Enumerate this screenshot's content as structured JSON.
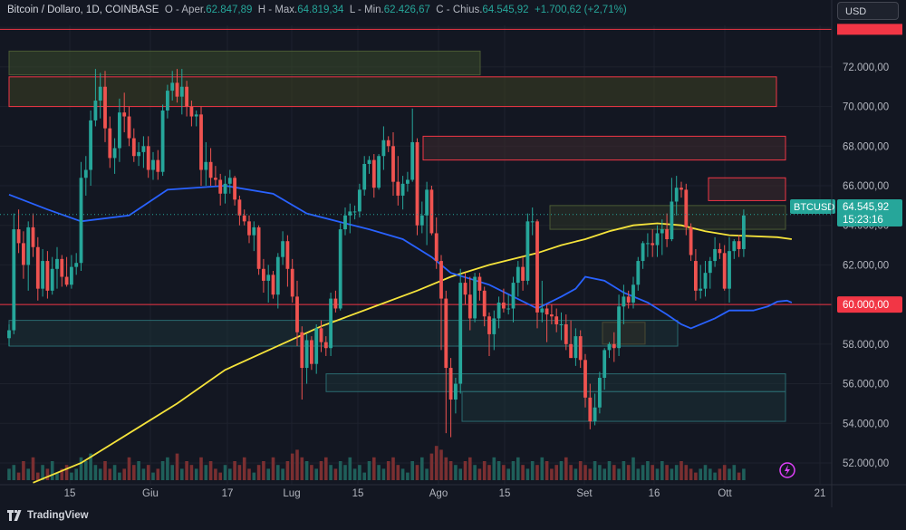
{
  "header": {
    "symbol": "Bitcoin / Dollaro, 1D, COINBASE",
    "open_label": "O - Aper.",
    "open": "62.847,89",
    "high_label": "H - Max.",
    "high": "64.819,34",
    "low_label": "L - Min.",
    "low": "62.426,67",
    "close_label": "C - Chius.",
    "close": "64.545,92",
    "change": "+1.700,62 (+2,71%)"
  },
  "currency_button": "USD",
  "brand": "TradingView",
  "price_tag": {
    "symbol": "BTCUSD",
    "price": "64.545,92",
    "countdown": "15:23:16"
  },
  "level_tag": {
    "price": "60.000,00"
  },
  "colors": {
    "bg": "#131722",
    "up": "#26a69a",
    "down": "#ef5350",
    "sma_slow": "#f5e33b",
    "sma_fast": "#2962ff",
    "level": "#f23645"
  },
  "chart_data": {
    "type": "candlestick",
    "x_labels": [
      "15",
      "Giu",
      "17",
      "Lug",
      "15",
      "Ago",
      "15",
      "Set",
      "16",
      "Ott",
      "21"
    ],
    "y_ticks": [
      "52.000,00",
      "54.000,00",
      "56.000,00",
      "58.000,00",
      "60.000,00",
      "62.000,00",
      "64.000,00",
      "66.000,00",
      "68.000,00",
      "70.000,00",
      "72.000,00"
    ],
    "y_range": [
      50900,
      74100
    ],
    "candles_ohlc": [
      [
        58300,
        59000,
        57900,
        58700
      ],
      [
        58700,
        64600,
        58500,
        63800
      ],
      [
        63800,
        64800,
        62600,
        63100
      ],
      [
        63100,
        63700,
        61300,
        62000
      ],
      [
        62000,
        64200,
        60700,
        63900
      ],
      [
        63900,
        64600,
        62400,
        62900
      ],
      [
        62900,
        63400,
        60200,
        60800
      ],
      [
        60800,
        62800,
        60400,
        62200
      ],
      [
        62200,
        62700,
        60300,
        60700
      ],
      [
        60700,
        62400,
        60500,
        61800
      ],
      [
        61800,
        62900,
        60800,
        62300
      ],
      [
        62300,
        62500,
        60900,
        61400
      ],
      [
        61400,
        62400,
        60900,
        61000
      ],
      [
        61000,
        62500,
        60800,
        61900
      ],
      [
        61900,
        62600,
        61500,
        62100
      ],
      [
        62100,
        67200,
        61700,
        66400
      ],
      [
        66400,
        67500,
        65500,
        66800
      ],
      [
        66800,
        69800,
        66000,
        69300
      ],
      [
        69300,
        71900,
        69000,
        70300
      ],
      [
        70300,
        71700,
        69400,
        71000
      ],
      [
        71000,
        71800,
        68200,
        68900
      ],
      [
        68900,
        69500,
        66900,
        67400
      ],
      [
        67400,
        68400,
        66600,
        67900
      ],
      [
        67900,
        70400,
        67200,
        69700
      ],
      [
        69700,
        70700,
        68700,
        69500
      ],
      [
        69500,
        70000,
        68000,
        68400
      ],
      [
        68400,
        68900,
        67200,
        67500
      ],
      [
        67500,
        68200,
        67000,
        67700
      ],
      [
        67700,
        68500,
        66900,
        68000
      ],
      [
        68000,
        68500,
        66400,
        66800
      ],
      [
        66800,
        67700,
        66300,
        67300
      ],
      [
        67300,
        67800,
        66300,
        66700
      ],
      [
        66700,
        70100,
        66500,
        69800
      ],
      [
        69800,
        71100,
        69400,
        70800
      ],
      [
        70800,
        71800,
        70300,
        71200
      ],
      [
        71200,
        71900,
        70200,
        70500
      ],
      [
        70500,
        71900,
        69600,
        71000
      ],
      [
        71000,
        71300,
        69500,
        70000
      ],
      [
        70000,
        70300,
        69000,
        69500
      ],
      [
        69500,
        69800,
        69000,
        69600
      ],
      [
        69600,
        70000,
        66000,
        66800
      ],
      [
        66800,
        68200,
        66000,
        67200
      ],
      [
        67200,
        67900,
        66000,
        66400
      ],
      [
        66400,
        67000,
        66000,
        66300
      ],
      [
        66300,
        66600,
        65000,
        65600
      ],
      [
        65600,
        66500,
        65100,
        66100
      ],
      [
        66100,
        66800,
        65600,
        66400
      ],
      [
        66400,
        66500,
        65000,
        65300
      ],
      [
        65300,
        65500,
        64000,
        64500
      ],
      [
        64500,
        64800,
        64000,
        64200
      ],
      [
        64200,
        64500,
        63100,
        63500
      ],
      [
        63500,
        64200,
        62700,
        63900
      ],
      [
        63900,
        64000,
        61500,
        61800
      ],
      [
        61800,
        62300,
        60600,
        61200
      ],
      [
        61200,
        62000,
        60100,
        61500
      ],
      [
        61500,
        61700,
        60300,
        60500
      ],
      [
        60500,
        62600,
        59800,
        62400
      ],
      [
        62400,
        63700,
        62000,
        63200
      ],
      [
        63200,
        63500,
        60900,
        61800
      ],
      [
        61800,
        62300,
        60100,
        60400
      ],
      [
        60400,
        61200,
        57900,
        58600
      ],
      [
        58600,
        58900,
        55200,
        56800
      ],
      [
        56800,
        58500,
        56000,
        58200
      ],
      [
        58200,
        58400,
        56700,
        57000
      ],
      [
        57000,
        59000,
        56500,
        58800
      ],
      [
        58800,
        59200,
        57600,
        58100
      ],
      [
        58100,
        58400,
        57400,
        57800
      ],
      [
        57800,
        60600,
        57400,
        60300
      ],
      [
        60300,
        60700,
        59600,
        59800
      ],
      [
        59800,
        64100,
        59700,
        63800
      ],
      [
        63800,
        64900,
        63500,
        64500
      ],
      [
        64500,
        65100,
        63600,
        64700
      ],
      [
        64700,
        65000,
        64300,
        64700
      ],
      [
        64700,
        66100,
        64400,
        65800
      ],
      [
        65800,
        67500,
        65500,
        67100
      ],
      [
        67100,
        67500,
        66600,
        67300
      ],
      [
        67300,
        67600,
        65400,
        65900
      ],
      [
        65900,
        67600,
        65800,
        67500
      ],
      [
        67500,
        69000,
        66800,
        68300
      ],
      [
        68300,
        68500,
        67700,
        68000
      ],
      [
        68000,
        68700,
        65500,
        66200
      ],
      [
        66200,
        67500,
        65000,
        65500
      ],
      [
        65500,
        66500,
        64800,
        66100
      ],
      [
        66100,
        66700,
        65700,
        66300
      ],
      [
        66300,
        69900,
        66200,
        68200
      ],
      [
        68200,
        68400,
        63500,
        64000
      ],
      [
        64000,
        65200,
        63600,
        64500
      ],
      [
        64500,
        66200,
        63000,
        65800
      ],
      [
        65800,
        66000,
        63500,
        63600
      ],
      [
        63600,
        64400,
        61800,
        62200
      ],
      [
        62200,
        62500,
        57700,
        60300
      ],
      [
        60300,
        60700,
        53500,
        56800
      ],
      [
        56800,
        57300,
        53300,
        55200
      ],
      [
        55200,
        56300,
        54500,
        56000
      ],
      [
        56000,
        61800,
        55500,
        61100
      ],
      [
        61100,
        61600,
        60000,
        60500
      ],
      [
        60500,
        61400,
        58700,
        59300
      ],
      [
        59300,
        61600,
        59100,
        61400
      ],
      [
        61400,
        61600,
        60200,
        60700
      ],
      [
        60700,
        60900,
        58900,
        59400
      ],
      [
        59400,
        59600,
        57400,
        58500
      ],
      [
        58500,
        59700,
        57700,
        59300
      ],
      [
        59300,
        60400,
        58800,
        60100
      ],
      [
        60100,
        60800,
        59600,
        59800
      ],
      [
        59800,
        60500,
        59500,
        59800
      ],
      [
        59800,
        61400,
        59100,
        61100
      ],
      [
        61100,
        62200,
        60400,
        61900
      ],
      [
        61900,
        62400,
        60700,
        61200
      ],
      [
        61200,
        64600,
        61000,
        64200
      ],
      [
        64200,
        64900,
        63500,
        64200
      ],
      [
        64200,
        64300,
        58800,
        59600
      ],
      [
        59600,
        61200,
        59100,
        59800
      ],
      [
        59800,
        60000,
        58100,
        59500
      ],
      [
        59500,
        60000,
        59000,
        59400
      ],
      [
        59400,
        59800,
        58600,
        59000
      ],
      [
        59000,
        59600,
        58200,
        59000
      ],
      [
        59000,
        59500,
        57700,
        58000
      ],
      [
        58000,
        59200,
        57300,
        57300
      ],
      [
        57300,
        58800,
        56900,
        58400
      ],
      [
        58400,
        58700,
        56800,
        57200
      ],
      [
        57200,
        57500,
        54800,
        55300
      ],
      [
        55300,
        56000,
        53700,
        54100
      ],
      [
        54100,
        55500,
        53900,
        54800
      ],
      [
        54800,
        56600,
        54500,
        56300
      ],
      [
        56300,
        57800,
        55700,
        57700
      ],
      [
        57700,
        58100,
        57300,
        58000
      ],
      [
        58000,
        58600,
        57100,
        57800
      ],
      [
        57800,
        60500,
        57400,
        59900
      ],
      [
        59900,
        61000,
        59000,
        60400
      ],
      [
        60400,
        60700,
        59800,
        60100
      ],
      [
        60100,
        61400,
        59800,
        61000
      ],
      [
        61000,
        62400,
        60700,
        62200
      ],
      [
        62200,
        63200,
        61800,
        63100
      ],
      [
        63100,
        63600,
        62400,
        63100
      ],
      [
        63100,
        63800,
        62400,
        63000
      ],
      [
        63000,
        64000,
        62400,
        63600
      ],
      [
        63600,
        64300,
        62500,
        63800
      ],
      [
        63800,
        64600,
        62900,
        63300
      ],
      [
        63300,
        66400,
        63200,
        65200
      ],
      [
        65200,
        66500,
        64500,
        65900
      ],
      [
        65900,
        66200,
        65400,
        65800
      ],
      [
        65800,
        66100,
        63500,
        63900
      ],
      [
        63900,
        64100,
        62200,
        62500
      ],
      [
        62200,
        62800,
        60200,
        60700
      ],
      [
        60700,
        62000,
        60300,
        60800
      ],
      [
        60800,
        62200,
        60400,
        61600
      ],
      [
        61600,
        62400,
        60800,
        62200
      ],
      [
        62200,
        63400,
        61900,
        62800
      ],
      [
        62800,
        63100,
        62300,
        62600
      ],
      [
        62600,
        63000,
        60700,
        60800
      ],
      [
        60800,
        63400,
        60100,
        62700
      ],
      [
        62700,
        63300,
        62300,
        63200
      ],
      [
        63200,
        63500,
        62400,
        62800
      ],
      [
        62800,
        64800,
        62400,
        64500
      ]
    ],
    "sma_fast_points": [
      [
        0,
        65550
      ],
      [
        8,
        64800
      ],
      [
        15,
        64200
      ],
      [
        25,
        64500
      ],
      [
        33,
        65800
      ],
      [
        45,
        66000
      ],
      [
        55,
        65600
      ],
      [
        62,
        64600
      ],
      [
        70,
        64100
      ],
      [
        75,
        63800
      ],
      [
        82,
        63300
      ],
      [
        88,
        62400
      ],
      [
        92,
        61600
      ],
      [
        96,
        61300
      ],
      [
        100,
        61000
      ],
      [
        105,
        60400
      ],
      [
        110,
        59800
      ],
      [
        115,
        60400
      ],
      [
        118,
        60800
      ],
      [
        120,
        61400
      ],
      [
        124,
        61200
      ],
      [
        128,
        60600
      ],
      [
        133,
        60100
      ],
      [
        137,
        59500
      ],
      [
        140,
        59000
      ],
      [
        142,
        58800
      ],
      [
        147,
        59300
      ],
      [
        150,
        59700
      ],
      [
        155,
        59700
      ],
      [
        158,
        59900
      ],
      [
        160,
        60150
      ],
      [
        162,
        60200
      ],
      [
        163,
        60100
      ]
    ],
    "sma_slow_points": [
      [
        5,
        51000
      ],
      [
        15,
        52000
      ],
      [
        25,
        53500
      ],
      [
        35,
        55000
      ],
      [
        45,
        56700
      ],
      [
        55,
        57800
      ],
      [
        65,
        58900
      ],
      [
        75,
        59800
      ],
      [
        85,
        60700
      ],
      [
        92,
        61400
      ],
      [
        100,
        62000
      ],
      [
        110,
        62600
      ],
      [
        115,
        63000
      ],
      [
        120,
        63300
      ],
      [
        125,
        63700
      ],
      [
        130,
        64000
      ],
      [
        135,
        64100
      ],
      [
        140,
        64000
      ],
      [
        145,
        63700
      ],
      [
        150,
        63500
      ],
      [
        160,
        63400
      ],
      [
        163,
        63300
      ]
    ],
    "volume_pattern": [
      3,
      4,
      2,
      5,
      3,
      6,
      2,
      4,
      3,
      5,
      2,
      3,
      4,
      2,
      3,
      6,
      5,
      7,
      4,
      3,
      5,
      3,
      4,
      2,
      3,
      6,
      4,
      5,
      3,
      4,
      2,
      3,
      5,
      6,
      4,
      7,
      3,
      5,
      4,
      3,
      6,
      4,
      5,
      3,
      2,
      4,
      3,
      5,
      4,
      6,
      3,
      2,
      4,
      5,
      3,
      6,
      4,
      3,
      5,
      7,
      8,
      6,
      5,
      4,
      3,
      5,
      6,
      4,
      3,
      5,
      4,
      6,
      3,
      4,
      2,
      5,
      6,
      4,
      3,
      5,
      6,
      4,
      3,
      2,
      5,
      4,
      6,
      3,
      7,
      9,
      8,
      6,
      5,
      4,
      3,
      5,
      6,
      4,
      3,
      5,
      4,
      6,
      5,
      4,
      3,
      5,
      6,
      4,
      3,
      5,
      4,
      6,
      5,
      3,
      4,
      5,
      6,
      4,
      3,
      5,
      4,
      3,
      5,
      4,
      3,
      5,
      4,
      3,
      5,
      4,
      6,
      3,
      4,
      5,
      4,
      3,
      5,
      4,
      3,
      4,
      5,
      4,
      3,
      2,
      3,
      4,
      3,
      2,
      3,
      4,
      3,
      4,
      2,
      3
    ]
  }
}
